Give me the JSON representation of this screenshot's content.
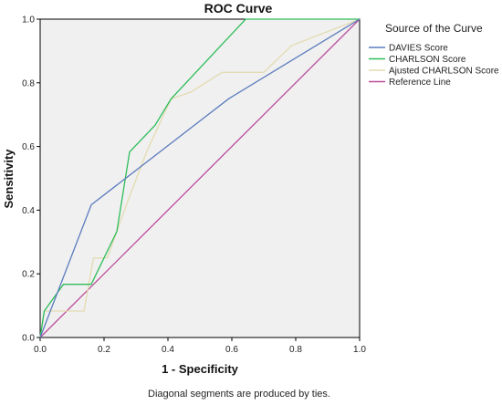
{
  "chart_data": {
    "type": "line",
    "title": "ROC Curve",
    "xlabel": "1 - Specificity",
    "ylabel": "Sensitivity",
    "xlim": [
      0,
      1
    ],
    "ylim": [
      0,
      1
    ],
    "x_ticks": [
      "0.0",
      "0.2",
      "0.4",
      "0.6",
      "0.8",
      "1.0"
    ],
    "y_ticks": [
      "0.0",
      "0.2",
      "0.4",
      "0.6",
      "0.8",
      "1.0"
    ],
    "grid": false,
    "legend_title": "Source of the Curve",
    "legend_position": "right",
    "footnote": "Diagonal segments are produced by ties.",
    "series": [
      {
        "name": "DAVIES Score",
        "color": "#5b7bbd",
        "points": [
          [
            0,
            0
          ],
          [
            0.16,
            0.417
          ],
          [
            0.59,
            0.75
          ],
          [
            1,
            1
          ]
        ]
      },
      {
        "name": "CHARLSON Score",
        "color": "#2ebd5a",
        "points": [
          [
            0,
            0
          ],
          [
            0.013,
            0.083
          ],
          [
            0.073,
            0.167
          ],
          [
            0.16,
            0.167
          ],
          [
            0.24,
            0.333
          ],
          [
            0.28,
            0.583
          ],
          [
            0.36,
            0.667
          ],
          [
            0.41,
            0.75
          ],
          [
            0.643,
            1
          ],
          [
            1,
            1
          ]
        ]
      },
      {
        "name": "Ajusted CHARLSON Score",
        "color": "#e3dbb2",
        "points": [
          [
            0,
            0
          ],
          [
            0.013,
            0.083
          ],
          [
            0.137,
            0.083
          ],
          [
            0.167,
            0.25
          ],
          [
            0.21,
            0.25
          ],
          [
            0.24,
            0.333
          ],
          [
            0.27,
            0.417
          ],
          [
            0.333,
            0.583
          ],
          [
            0.41,
            0.75
          ],
          [
            0.47,
            0.77
          ],
          [
            0.57,
            0.833
          ],
          [
            0.7,
            0.833
          ],
          [
            0.787,
            0.917
          ],
          [
            1,
            1
          ]
        ]
      },
      {
        "name": "Reference Line",
        "color": "#bb4e9c",
        "points": [
          [
            0,
            0
          ],
          [
            1,
            1
          ]
        ]
      }
    ]
  }
}
